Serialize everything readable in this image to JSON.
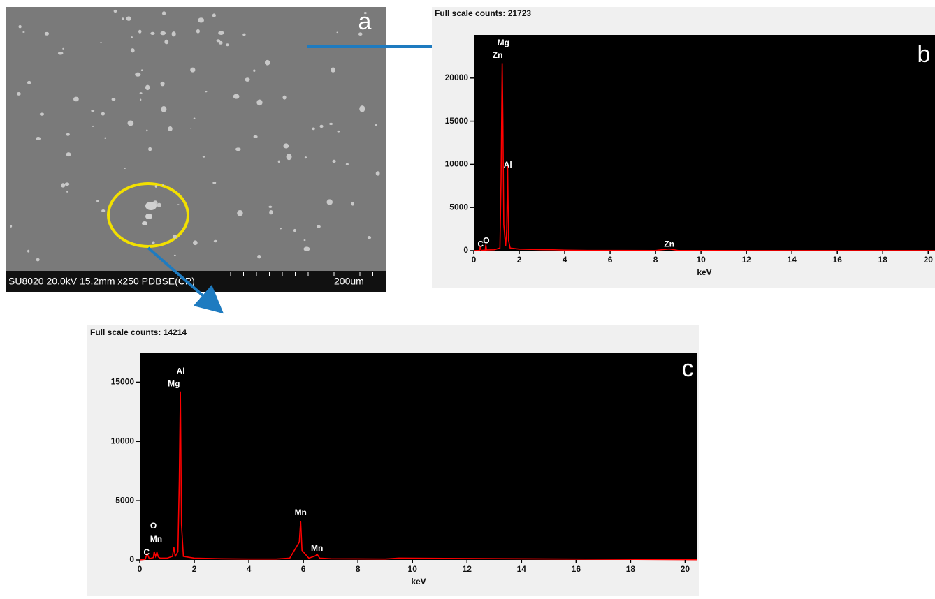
{
  "image": {
    "panel": "a",
    "caption": "SU8020 20.0kV 15.2mm x250 PDBSE(CP)",
    "scale": "200um"
  },
  "chart_data": [
    {
      "type": "line",
      "title": "Full scale counts: 21723",
      "panel": "b",
      "x_label": "keV",
      "xlim": [
        0,
        20.3
      ],
      "ylim": [
        0,
        25000
      ],
      "xticks": [
        0,
        2,
        4,
        6,
        8,
        10,
        12,
        14,
        16,
        18,
        20
      ],
      "yticks": [
        0,
        5000,
        10000,
        15000,
        20000
      ],
      "x": [
        0,
        0.25,
        0.28,
        0.32,
        0.5,
        0.53,
        0.56,
        0.9,
        1.15,
        1.2,
        1.25,
        1.28,
        1.32,
        1.4,
        1.45,
        1.49,
        1.53,
        1.6,
        2,
        2.5,
        3,
        3.5,
        4,
        5,
        8,
        8.6,
        9,
        12,
        20.3
      ],
      "series": [
        {
          "color": "#ff0000",
          "values": [
            0,
            30,
            450,
            40,
            60,
            700,
            80,
            100,
            300,
            8000,
            21723,
            15000,
            3000,
            500,
            2500,
            9800,
            1200,
            300,
            180,
            150,
            120,
            100,
            60,
            30,
            20,
            200,
            20,
            10,
            10
          ]
        }
      ],
      "annotations": [
        {
          "text": "Mg",
          "x": 1.3,
          "y": 24050
        },
        {
          "text": "Zn",
          "x": 1.05,
          "y": 22600
        },
        {
          "text": "Al",
          "x": 1.5,
          "y": 9900
        },
        {
          "text": "C",
          "x": 0.3,
          "y": 700
        },
        {
          "text": "O",
          "x": 0.55,
          "y": 1100
        },
        {
          "text": "Zn",
          "x": 8.6,
          "y": 700
        }
      ]
    },
    {
      "type": "line",
      "title": "Full scale counts: 14214",
      "panel": "c",
      "x_label": "keV",
      "xlim": [
        0,
        20.45
      ],
      "ylim": [
        0,
        17500
      ],
      "xticks": [
        0,
        2,
        4,
        6,
        8,
        10,
        12,
        14,
        16,
        18,
        20
      ],
      "yticks": [
        0,
        5000,
        10000,
        15000
      ],
      "x": [
        0,
        0.2,
        0.27,
        0.35,
        0.5,
        0.53,
        0.58,
        0.63,
        0.68,
        0.75,
        1.0,
        1.2,
        1.25,
        1.3,
        1.4,
        1.45,
        1.49,
        1.53,
        1.6,
        2,
        3,
        4,
        5,
        5.5,
        5.85,
        5.9,
        5.95,
        6.2,
        6.45,
        6.5,
        6.6,
        7,
        9,
        9.5,
        20.45
      ],
      "series": [
        {
          "color": "#ff0000",
          "values": [
            0,
            50,
            550,
            100,
            200,
            700,
            300,
            650,
            250,
            150,
            150,
            300,
            1100,
            300,
            700,
            6800,
            14214,
            3000,
            300,
            150,
            100,
            80,
            80,
            150,
            1500,
            3300,
            800,
            150,
            350,
            500,
            150,
            100,
            80,
            150,
            20
          ]
        }
      ],
      "annotations": [
        {
          "text": "Al",
          "x": 1.5,
          "y": 15890
        },
        {
          "text": "Mg",
          "x": 1.25,
          "y": 14830
        },
        {
          "text": "O",
          "x": 0.5,
          "y": 2840
        },
        {
          "text": "Mn",
          "x": 0.6,
          "y": 1710
        },
        {
          "text": "C",
          "x": 0.25,
          "y": 590
        },
        {
          "text": "Mn",
          "x": 5.9,
          "y": 3960
        },
        {
          "text": "Mn",
          "x": 6.5,
          "y": 950
        }
      ]
    }
  ]
}
